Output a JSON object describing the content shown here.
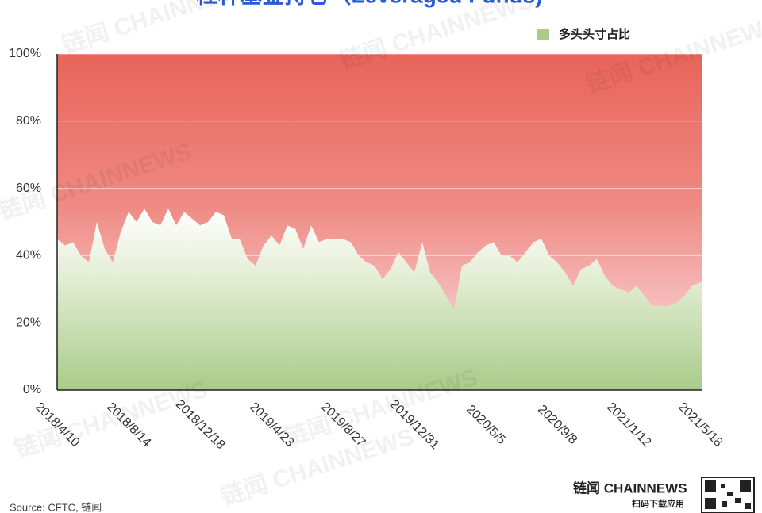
{
  "chart_data": {
    "type": "area",
    "title": "杠杆基金持仓（Leveraged Funds)",
    "legend": "多头头寸占比",
    "source": "Source: CFTC, 链闻",
    "watermark": "链闻 CHAINNEWS",
    "brand": {
      "name": "链闻 CHAINNEWS",
      "slogan": "扫码下载应用"
    },
    "color": "#a9cc8a",
    "upper_color": "#e8645a",
    "grid": true,
    "ylim": [
      0,
      100
    ],
    "yticks": [
      {
        "value": 0,
        "label": "0%"
      },
      {
        "value": 20,
        "label": "20%"
      },
      {
        "value": 40,
        "label": "40%"
      },
      {
        "value": 60,
        "label": "60%"
      },
      {
        "value": 80,
        "label": "80%"
      },
      {
        "value": 100,
        "label": "100%"
      }
    ],
    "categories": [
      "2018/4/10",
      null,
      null,
      null,
      null,
      null,
      null,
      null,
      null,
      "2018/8/14",
      null,
      null,
      null,
      null,
      null,
      null,
      null,
      null,
      "2018/12/18",
      null,
      null,
      null,
      null,
      null,
      null,
      null,
      null,
      "2019/4/23",
      null,
      null,
      null,
      null,
      null,
      null,
      null,
      null,
      "2019/8/27",
      null,
      null,
      null,
      null,
      null,
      null,
      null,
      null,
      "2019/12/31",
      null,
      null,
      null,
      null,
      null,
      null,
      null,
      null,
      "2020/5/5",
      null,
      null,
      null,
      null,
      null,
      null,
      null,
      null,
      "2020/9/8",
      null,
      null,
      null,
      null,
      null,
      null,
      null,
      null,
      "2021/1/12",
      null,
      null,
      null,
      null,
      null,
      null,
      null,
      null,
      "2021/5/18"
    ],
    "values": [
      45,
      43,
      44,
      40,
      38,
      50,
      42,
      38,
      47,
      53,
      50,
      54,
      50,
      49,
      54,
      49,
      53,
      51,
      49,
      50,
      53,
      52,
      45,
      45,
      39,
      37,
      43,
      46,
      43,
      49,
      48,
      42,
      49,
      44,
      45,
      45,
      45,
      44,
      40,
      38,
      37,
      33,
      36,
      41,
      38,
      35,
      44,
      35,
      32,
      28,
      24,
      37,
      38,
      41,
      43,
      44,
      40,
      40,
      38,
      41,
      44,
      45,
      40,
      38,
      35,
      31,
      36,
      37,
      39,
      34,
      31,
      30,
      29,
      31,
      28,
      25,
      25,
      25,
      26,
      28,
      31,
      32
    ]
  }
}
